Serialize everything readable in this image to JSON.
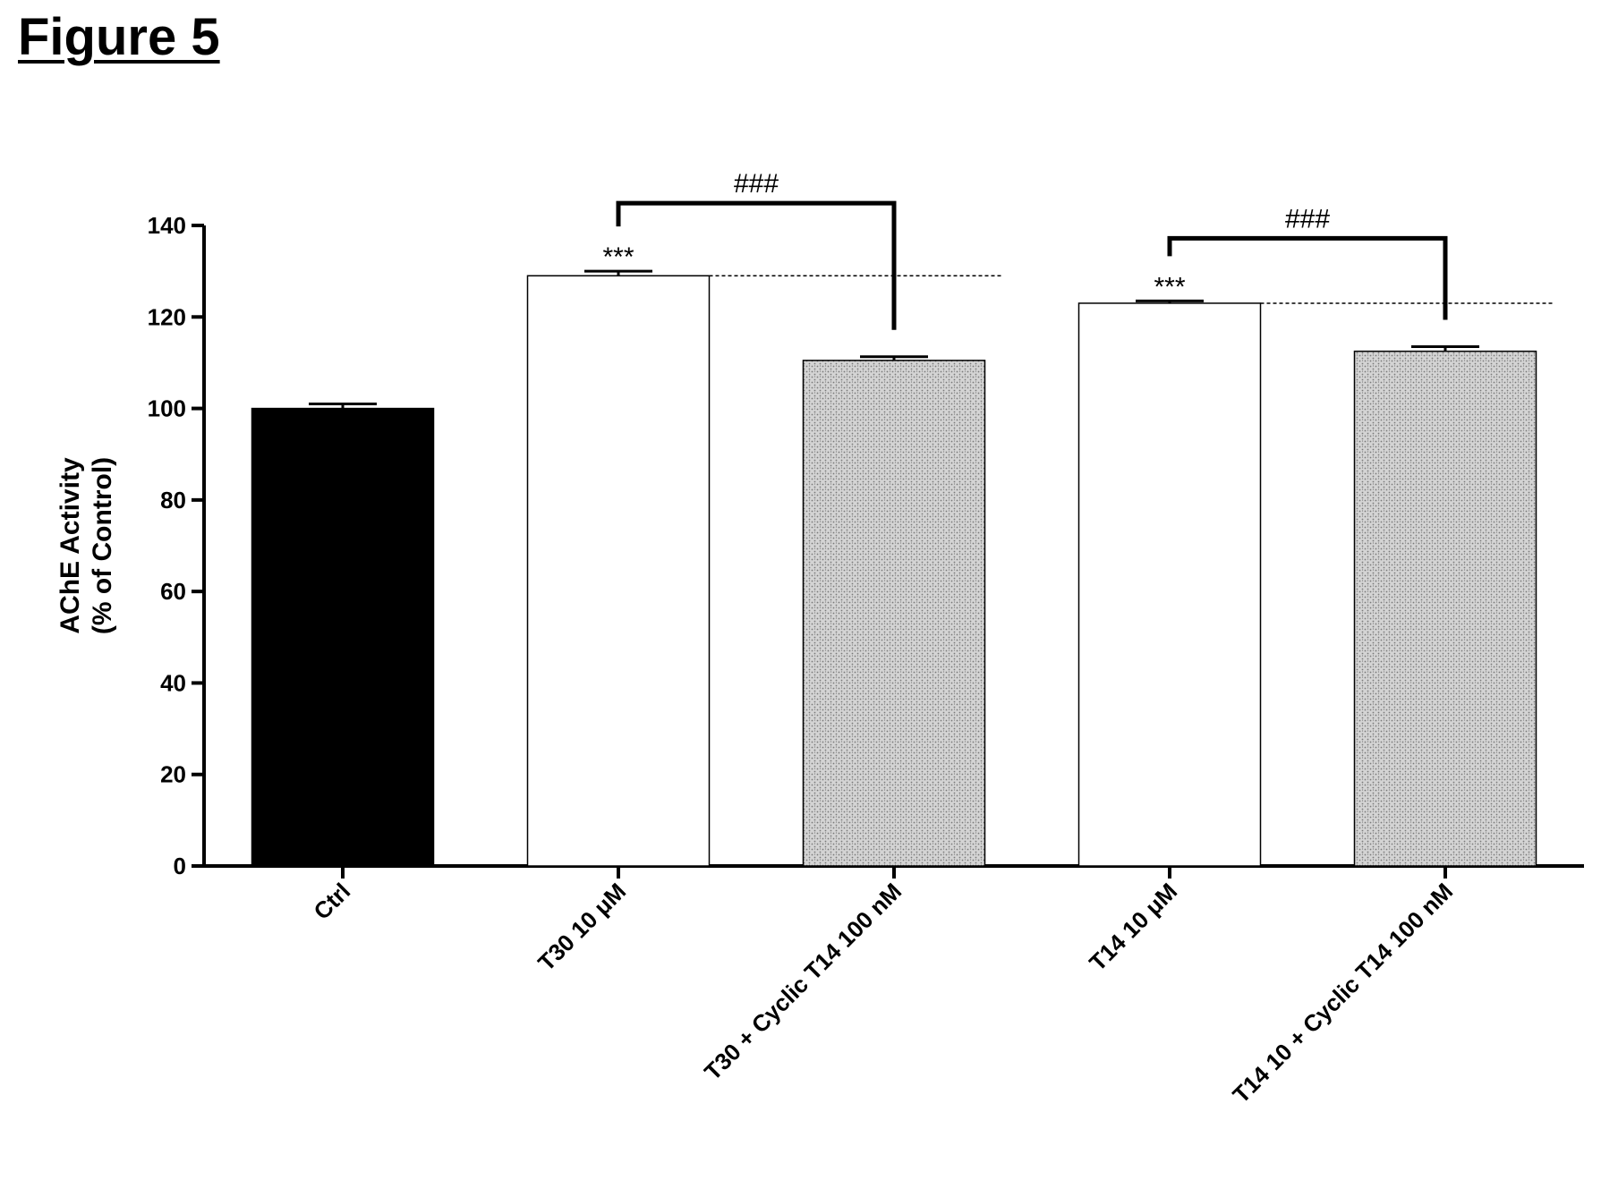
{
  "figure_title": "Figure 5",
  "chart_data": {
    "type": "bar",
    "title": "",
    "xlabel": "",
    "ylabel": "AChE Activity",
    "ylabel_line2": "(% of Control)",
    "ylim": [
      0,
      140
    ],
    "yticks": [
      0,
      20,
      40,
      60,
      80,
      100,
      120,
      140
    ],
    "grid": false,
    "categories": [
      "Ctrl",
      "T30 10 μM",
      "T30 + Cyclic T14 100 nM",
      "T14 10 μM",
      "T14 10 + Cyclic T14 100 nM"
    ],
    "values": [
      100,
      129,
      110.5,
      123,
      112.5
    ],
    "errors": [
      1,
      1,
      0.8,
      0.5,
      1
    ],
    "bar_fills": [
      "solid-black",
      "white",
      "stippled-gray",
      "white",
      "stippled-gray"
    ],
    "colors": {
      "black": "#000000",
      "white": "#ffffff",
      "stipple_base": "#d4d4d4",
      "stipple_dot": "#7a7a7a"
    },
    "annotations": [
      {
        "text": "***",
        "category": "T30 10 μM"
      },
      {
        "text": "***",
        "category": "T14 10 μM"
      }
    ],
    "brackets": [
      {
        "text": "###",
        "from": "T30 10 μM",
        "to": "T30 + Cyclic T14 100 nM"
      },
      {
        "text": "###",
        "from": "T14 10 μM",
        "to": "T14 10 + Cyclic T14 100 nM"
      }
    ],
    "reference_lines": [
      {
        "value": 129,
        "from": "T30 10 μM",
        "to": "T30 + Cyclic T14 100 nM"
      },
      {
        "value": 123,
        "from": "T14 10 μM",
        "to": "T14 10 + Cyclic T14 100 nM"
      }
    ]
  }
}
